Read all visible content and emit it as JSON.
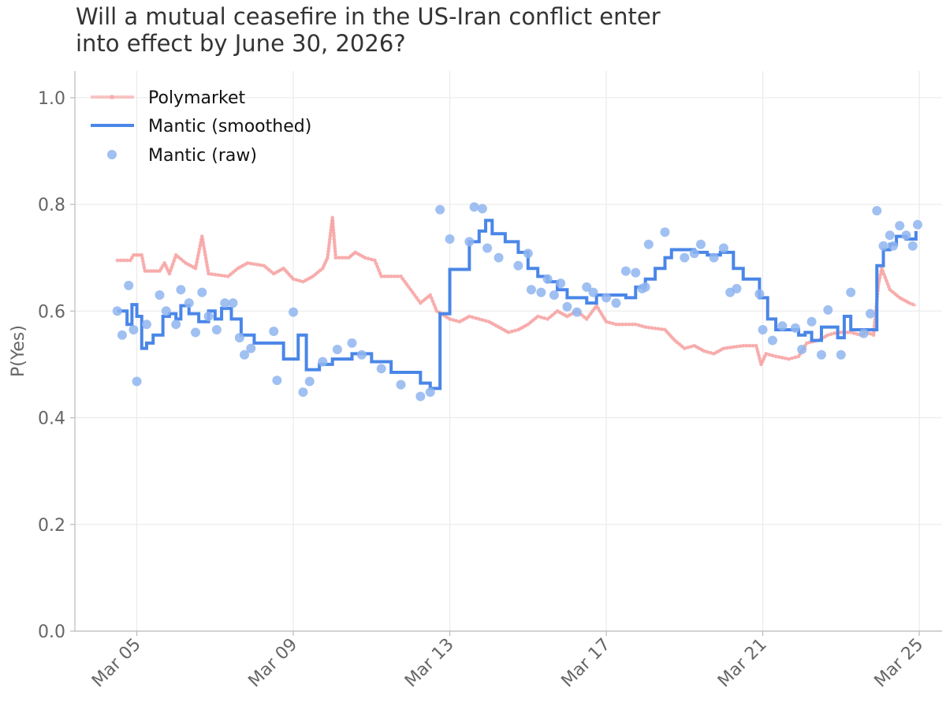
{
  "chart_data": {
    "type": "line",
    "title_lines": [
      "Will a mutual ceasefire in the US-Iran conflict enter",
      "into effect by June 30, 2026?"
    ],
    "xlabel": "",
    "ylabel": "P(Yes)",
    "ylim": [
      0,
      1.05
    ],
    "y_ticks": [
      0.0,
      0.2,
      0.4,
      0.6,
      0.8,
      1.0
    ],
    "y_tick_labels": [
      "0.0",
      "0.2",
      "0.4",
      "0.6",
      "0.8",
      "1.0"
    ],
    "x_ticks": [
      "2026-03-05",
      "2026-03-09",
      "2026-03-13",
      "2026-03-17",
      "2026-03-21",
      "2026-03-25"
    ],
    "x_tick_labels": [
      "Mar 05",
      "Mar 09",
      "Mar 13",
      "Mar 17",
      "Mar 21",
      "Mar 25"
    ],
    "xlim": [
      "2026-03-03 10:00",
      "2026-03-25 14:00"
    ],
    "grid": true,
    "legend_position": "top-left",
    "colors": {
      "polymarket": "#f7a0a0",
      "smoothed": "#4a86e8",
      "raw": "#8fb5f0"
    },
    "series": [
      {
        "name": "Polymarket",
        "style": "line-with-markers",
        "points": [
          [
            "2026-03-04 12:00",
            0.695
          ],
          [
            "2026-03-04 20:00",
            0.695
          ],
          [
            "2026-03-04 22:00",
            0.705
          ],
          [
            "2026-03-05 03:00",
            0.705
          ],
          [
            "2026-03-05 05:00",
            0.675
          ],
          [
            "2026-03-05 14:00",
            0.675
          ],
          [
            "2026-03-05 17:00",
            0.69
          ],
          [
            "2026-03-05 20:00",
            0.67
          ],
          [
            "2026-03-06 00:00",
            0.705
          ],
          [
            "2026-03-06 06:00",
            0.69
          ],
          [
            "2026-03-06 12:00",
            0.68
          ],
          [
            "2026-03-06 16:00",
            0.74
          ],
          [
            "2026-03-06 20:00",
            0.67
          ],
          [
            "2026-03-07 08:00",
            0.665
          ],
          [
            "2026-03-07 14:00",
            0.68
          ],
          [
            "2026-03-07 20:00",
            0.69
          ],
          [
            "2026-03-08 06:00",
            0.685
          ],
          [
            "2026-03-08 12:00",
            0.67
          ],
          [
            "2026-03-08 18:00",
            0.68
          ],
          [
            "2026-03-09 00:00",
            0.66
          ],
          [
            "2026-03-09 06:00",
            0.655
          ],
          [
            "2026-03-09 12:00",
            0.665
          ],
          [
            "2026-03-09 18:00",
            0.68
          ],
          [
            "2026-03-09 21:00",
            0.7
          ],
          [
            "2026-03-10 00:00",
            0.775
          ],
          [
            "2026-03-10 02:00",
            0.7
          ],
          [
            "2026-03-10 10:00",
            0.7
          ],
          [
            "2026-03-10 14:00",
            0.71
          ],
          [
            "2026-03-10 20:00",
            0.7
          ],
          [
            "2026-03-11 02:00",
            0.695
          ],
          [
            "2026-03-11 06:00",
            0.665
          ],
          [
            "2026-03-11 18:00",
            0.665
          ],
          [
            "2026-03-12 00:00",
            0.64
          ],
          [
            "2026-03-12 06:00",
            0.615
          ],
          [
            "2026-03-12 12:00",
            0.63
          ],
          [
            "2026-03-12 16:00",
            0.6
          ],
          [
            "2026-03-13 00:00",
            0.585
          ],
          [
            "2026-03-13 06:00",
            0.58
          ],
          [
            "2026-03-13 12:00",
            0.59
          ],
          [
            "2026-03-13 18:00",
            0.585
          ],
          [
            "2026-03-14 00:00",
            0.58
          ],
          [
            "2026-03-14 06:00",
            0.57
          ],
          [
            "2026-03-14 12:00",
            0.56
          ],
          [
            "2026-03-14 18:00",
            0.565
          ],
          [
            "2026-03-15 00:00",
            0.575
          ],
          [
            "2026-03-15 06:00",
            0.59
          ],
          [
            "2026-03-15 12:00",
            0.585
          ],
          [
            "2026-03-15 18:00",
            0.6
          ],
          [
            "2026-03-16 00:00",
            0.59
          ],
          [
            "2026-03-16 06:00",
            0.6
          ],
          [
            "2026-03-16 12:00",
            0.585
          ],
          [
            "2026-03-16 18:00",
            0.61
          ],
          [
            "2026-03-17 00:00",
            0.58
          ],
          [
            "2026-03-17 06:00",
            0.575
          ],
          [
            "2026-03-17 18:00",
            0.575
          ],
          [
            "2026-03-18 00:00",
            0.57
          ],
          [
            "2026-03-18 12:00",
            0.565
          ],
          [
            "2026-03-18 18:00",
            0.545
          ],
          [
            "2026-03-19 00:00",
            0.53
          ],
          [
            "2026-03-19 06:00",
            0.535
          ],
          [
            "2026-03-19 12:00",
            0.525
          ],
          [
            "2026-03-19 18:00",
            0.52
          ],
          [
            "2026-03-20 00:00",
            0.53
          ],
          [
            "2026-03-20 12:00",
            0.535
          ],
          [
            "2026-03-20 20:00",
            0.535
          ],
          [
            "2026-03-20 23:00",
            0.5
          ],
          [
            "2026-03-21 02:00",
            0.52
          ],
          [
            "2026-03-21 08:00",
            0.515
          ],
          [
            "2026-03-21 16:00",
            0.51
          ],
          [
            "2026-03-21 22:00",
            0.515
          ],
          [
            "2026-03-22 03:00",
            0.54
          ],
          [
            "2026-03-22 10:00",
            0.545
          ],
          [
            "2026-03-22 16:00",
            0.555
          ],
          [
            "2026-03-22 22:00",
            0.56
          ],
          [
            "2026-03-23 06:00",
            0.56
          ],
          [
            "2026-03-23 12:00",
            0.555
          ],
          [
            "2026-03-23 16:00",
            0.56
          ],
          [
            "2026-03-23 20:00",
            0.555
          ],
          [
            "2026-03-23 23:00",
            0.65
          ],
          [
            "2026-03-24 01:00",
            0.68
          ],
          [
            "2026-03-24 06:00",
            0.64
          ],
          [
            "2026-03-24 12:00",
            0.625
          ],
          [
            "2026-03-24 18:00",
            0.615
          ],
          [
            "2026-03-24 22:00",
            0.61
          ]
        ]
      },
      {
        "name": "Mantic (smoothed)",
        "style": "step",
        "points": [
          [
            "2026-03-04 12:00",
            0.6
          ],
          [
            "2026-03-04 18:00",
            0.575
          ],
          [
            "2026-03-04 21:00",
            0.612
          ],
          [
            "2026-03-05 00:00",
            0.59
          ],
          [
            "2026-03-05 03:00",
            0.53
          ],
          [
            "2026-03-05 06:00",
            0.54
          ],
          [
            "2026-03-05 10:00",
            0.555
          ],
          [
            "2026-03-05 16:00",
            0.59
          ],
          [
            "2026-03-05 20:00",
            0.595
          ],
          [
            "2026-03-06 00:00",
            0.585
          ],
          [
            "2026-03-06 03:00",
            0.61
          ],
          [
            "2026-03-06 08:00",
            0.595
          ],
          [
            "2026-03-06 14:00",
            0.58
          ],
          [
            "2026-03-06 20:00",
            0.6
          ],
          [
            "2026-03-07 00:00",
            0.585
          ],
          [
            "2026-03-07 04:00",
            0.605
          ],
          [
            "2026-03-07 10:00",
            0.585
          ],
          [
            "2026-03-07 16:00",
            0.555
          ],
          [
            "2026-03-08 00:00",
            0.54
          ],
          [
            "2026-03-08 18:00",
            0.51
          ],
          [
            "2026-03-09 00:00",
            0.51
          ],
          [
            "2026-03-09 03:00",
            0.555
          ],
          [
            "2026-03-09 08:00",
            0.49
          ],
          [
            "2026-03-09 16:00",
            0.5
          ],
          [
            "2026-03-10 00:00",
            0.51
          ],
          [
            "2026-03-10 12:00",
            0.52
          ],
          [
            "2026-03-11 00:00",
            0.505
          ],
          [
            "2026-03-11 12:00",
            0.485
          ],
          [
            "2026-03-12 06:00",
            0.465
          ],
          [
            "2026-03-12 12:00",
            0.455
          ],
          [
            "2026-03-12 18:00",
            0.595
          ],
          [
            "2026-03-13 00:00",
            0.678
          ],
          [
            "2026-03-13 12:00",
            0.73
          ],
          [
            "2026-03-13 18:00",
            0.75
          ],
          [
            "2026-03-13 22:00",
            0.77
          ],
          [
            "2026-03-14 02:00",
            0.745
          ],
          [
            "2026-03-14 10:00",
            0.73
          ],
          [
            "2026-03-14 18:00",
            0.71
          ],
          [
            "2026-03-15 00:00",
            0.68
          ],
          [
            "2026-03-15 06:00",
            0.665
          ],
          [
            "2026-03-15 12:00",
            0.655
          ],
          [
            "2026-03-15 18:00",
            0.64
          ],
          [
            "2026-03-16 00:00",
            0.625
          ],
          [
            "2026-03-16 12:00",
            0.615
          ],
          [
            "2026-03-16 18:00",
            0.63
          ],
          [
            "2026-03-17 12:00",
            0.625
          ],
          [
            "2026-03-17 18:00",
            0.645
          ],
          [
            "2026-03-18 00:00",
            0.66
          ],
          [
            "2026-03-18 06:00",
            0.68
          ],
          [
            "2026-03-18 12:00",
            0.7
          ],
          [
            "2026-03-18 16:00",
            0.715
          ],
          [
            "2026-03-19 00:00",
            0.715
          ],
          [
            "2026-03-19 06:00",
            0.71
          ],
          [
            "2026-03-19 14:00",
            0.705
          ],
          [
            "2026-03-19 22:00",
            0.71
          ],
          [
            "2026-03-20 06:00",
            0.68
          ],
          [
            "2026-03-20 12:00",
            0.66
          ],
          [
            "2026-03-20 22:00",
            0.625
          ],
          [
            "2026-03-21 03:00",
            0.585
          ],
          [
            "2026-03-21 08:00",
            0.565
          ],
          [
            "2026-03-21 16:00",
            0.565
          ],
          [
            "2026-03-21 22:00",
            0.555
          ],
          [
            "2026-03-22 02:00",
            0.56
          ],
          [
            "2026-03-22 06:00",
            0.545
          ],
          [
            "2026-03-22 12:00",
            0.57
          ],
          [
            "2026-03-22 18:00",
            0.57
          ],
          [
            "2026-03-22 22:00",
            0.55
          ],
          [
            "2026-03-23 02:00",
            0.59
          ],
          [
            "2026-03-23 06:00",
            0.565
          ],
          [
            "2026-03-23 18:00",
            0.565
          ],
          [
            "2026-03-23 22:00",
            0.685
          ],
          [
            "2026-03-24 02:00",
            0.715
          ],
          [
            "2026-03-24 06:00",
            0.725
          ],
          [
            "2026-03-24 10:00",
            0.74
          ],
          [
            "2026-03-24 16:00",
            0.735
          ],
          [
            "2026-03-24 20:00",
            0.735
          ],
          [
            "2026-03-24 22:00",
            0.75
          ]
        ]
      },
      {
        "name": "Mantic (raw)",
        "style": "scatter",
        "points": [
          [
            "2026-03-04 12:00",
            0.6
          ],
          [
            "2026-03-04 15:00",
            0.555
          ],
          [
            "2026-03-04 19:00",
            0.648
          ],
          [
            "2026-03-04 22:00",
            0.565
          ],
          [
            "2026-03-05 00:00",
            0.468
          ],
          [
            "2026-03-05 06:00",
            0.575
          ],
          [
            "2026-03-05 14:00",
            0.63
          ],
          [
            "2026-03-05 18:00",
            0.6
          ],
          [
            "2026-03-06 00:00",
            0.575
          ],
          [
            "2026-03-06 03:00",
            0.64
          ],
          [
            "2026-03-06 08:00",
            0.615
          ],
          [
            "2026-03-06 12:00",
            0.56
          ],
          [
            "2026-03-06 16:00",
            0.635
          ],
          [
            "2026-03-06 20:00",
            0.59
          ],
          [
            "2026-03-07 01:00",
            0.565
          ],
          [
            "2026-03-07 06:00",
            0.615
          ],
          [
            "2026-03-07 11:00",
            0.615
          ],
          [
            "2026-03-07 15:00",
            0.55
          ],
          [
            "2026-03-07 18:00",
            0.518
          ],
          [
            "2026-03-07 22:00",
            0.53
          ],
          [
            "2026-03-08 12:00",
            0.562
          ],
          [
            "2026-03-08 14:00",
            0.47
          ],
          [
            "2026-03-09 00:00",
            0.598
          ],
          [
            "2026-03-09 06:00",
            0.448
          ],
          [
            "2026-03-09 10:00",
            0.468
          ],
          [
            "2026-03-09 18:00",
            0.505
          ],
          [
            "2026-03-10 03:00",
            0.528
          ],
          [
            "2026-03-10 12:00",
            0.54
          ],
          [
            "2026-03-10 18:00",
            0.518
          ],
          [
            "2026-03-11 06:00",
            0.492
          ],
          [
            "2026-03-11 18:00",
            0.462
          ],
          [
            "2026-03-12 06:00",
            0.44
          ],
          [
            "2026-03-12 12:00",
            0.448
          ],
          [
            "2026-03-12 18:00",
            0.79
          ],
          [
            "2026-03-13 00:00",
            0.735
          ],
          [
            "2026-03-13 12:00",
            0.73
          ],
          [
            "2026-03-13 15:00",
            0.795
          ],
          [
            "2026-03-13 20:00",
            0.792
          ],
          [
            "2026-03-13 23:00",
            0.718
          ],
          [
            "2026-03-14 06:00",
            0.7
          ],
          [
            "2026-03-14 18:00",
            0.685
          ],
          [
            "2026-03-15 00:00",
            0.708
          ],
          [
            "2026-03-15 02:00",
            0.64
          ],
          [
            "2026-03-15 08:00",
            0.635
          ],
          [
            "2026-03-15 12:00",
            0.66
          ],
          [
            "2026-03-15 16:00",
            0.63
          ],
          [
            "2026-03-15 20:00",
            0.652
          ],
          [
            "2026-03-16 00:00",
            0.608
          ],
          [
            "2026-03-16 06:00",
            0.598
          ],
          [
            "2026-03-16 12:00",
            0.645
          ],
          [
            "2026-03-16 16:00",
            0.635
          ],
          [
            "2026-03-17 00:00",
            0.625
          ],
          [
            "2026-03-17 06:00",
            0.615
          ],
          [
            "2026-03-17 12:00",
            0.675
          ],
          [
            "2026-03-17 18:00",
            0.672
          ],
          [
            "2026-03-17 22:00",
            0.642
          ],
          [
            "2026-03-18 00:00",
            0.645
          ],
          [
            "2026-03-18 02:00",
            0.725
          ],
          [
            "2026-03-18 12:00",
            0.748
          ],
          [
            "2026-03-19 00:00",
            0.7
          ],
          [
            "2026-03-19 06:00",
            0.708
          ],
          [
            "2026-03-19 10:00",
            0.725
          ],
          [
            "2026-03-19 18:00",
            0.7
          ],
          [
            "2026-03-20 00:00",
            0.718
          ],
          [
            "2026-03-20 04:00",
            0.635
          ],
          [
            "2026-03-20 08:00",
            0.642
          ],
          [
            "2026-03-20 22:00",
            0.632
          ],
          [
            "2026-03-21 00:00",
            0.565
          ],
          [
            "2026-03-21 06:00",
            0.545
          ],
          [
            "2026-03-21 12:00",
            0.572
          ],
          [
            "2026-03-21 20:00",
            0.568
          ],
          [
            "2026-03-22 00:00",
            0.528
          ],
          [
            "2026-03-22 06:00",
            0.58
          ],
          [
            "2026-03-22 12:00",
            0.518
          ],
          [
            "2026-03-22 16:00",
            0.602
          ],
          [
            "2026-03-23 00:00",
            0.518
          ],
          [
            "2026-03-23 06:00",
            0.635
          ],
          [
            "2026-03-23 14:00",
            0.558
          ],
          [
            "2026-03-23 18:00",
            0.595
          ],
          [
            "2026-03-23 22:00",
            0.788
          ],
          [
            "2026-03-24 02:00",
            0.722
          ],
          [
            "2026-03-24 06:00",
            0.742
          ],
          [
            "2026-03-24 08:00",
            0.722
          ],
          [
            "2026-03-24 12:00",
            0.76
          ],
          [
            "2026-03-24 16:00",
            0.742
          ],
          [
            "2026-03-24 20:00",
            0.722
          ],
          [
            "2026-03-24 23:00",
            0.762
          ]
        ]
      }
    ]
  }
}
